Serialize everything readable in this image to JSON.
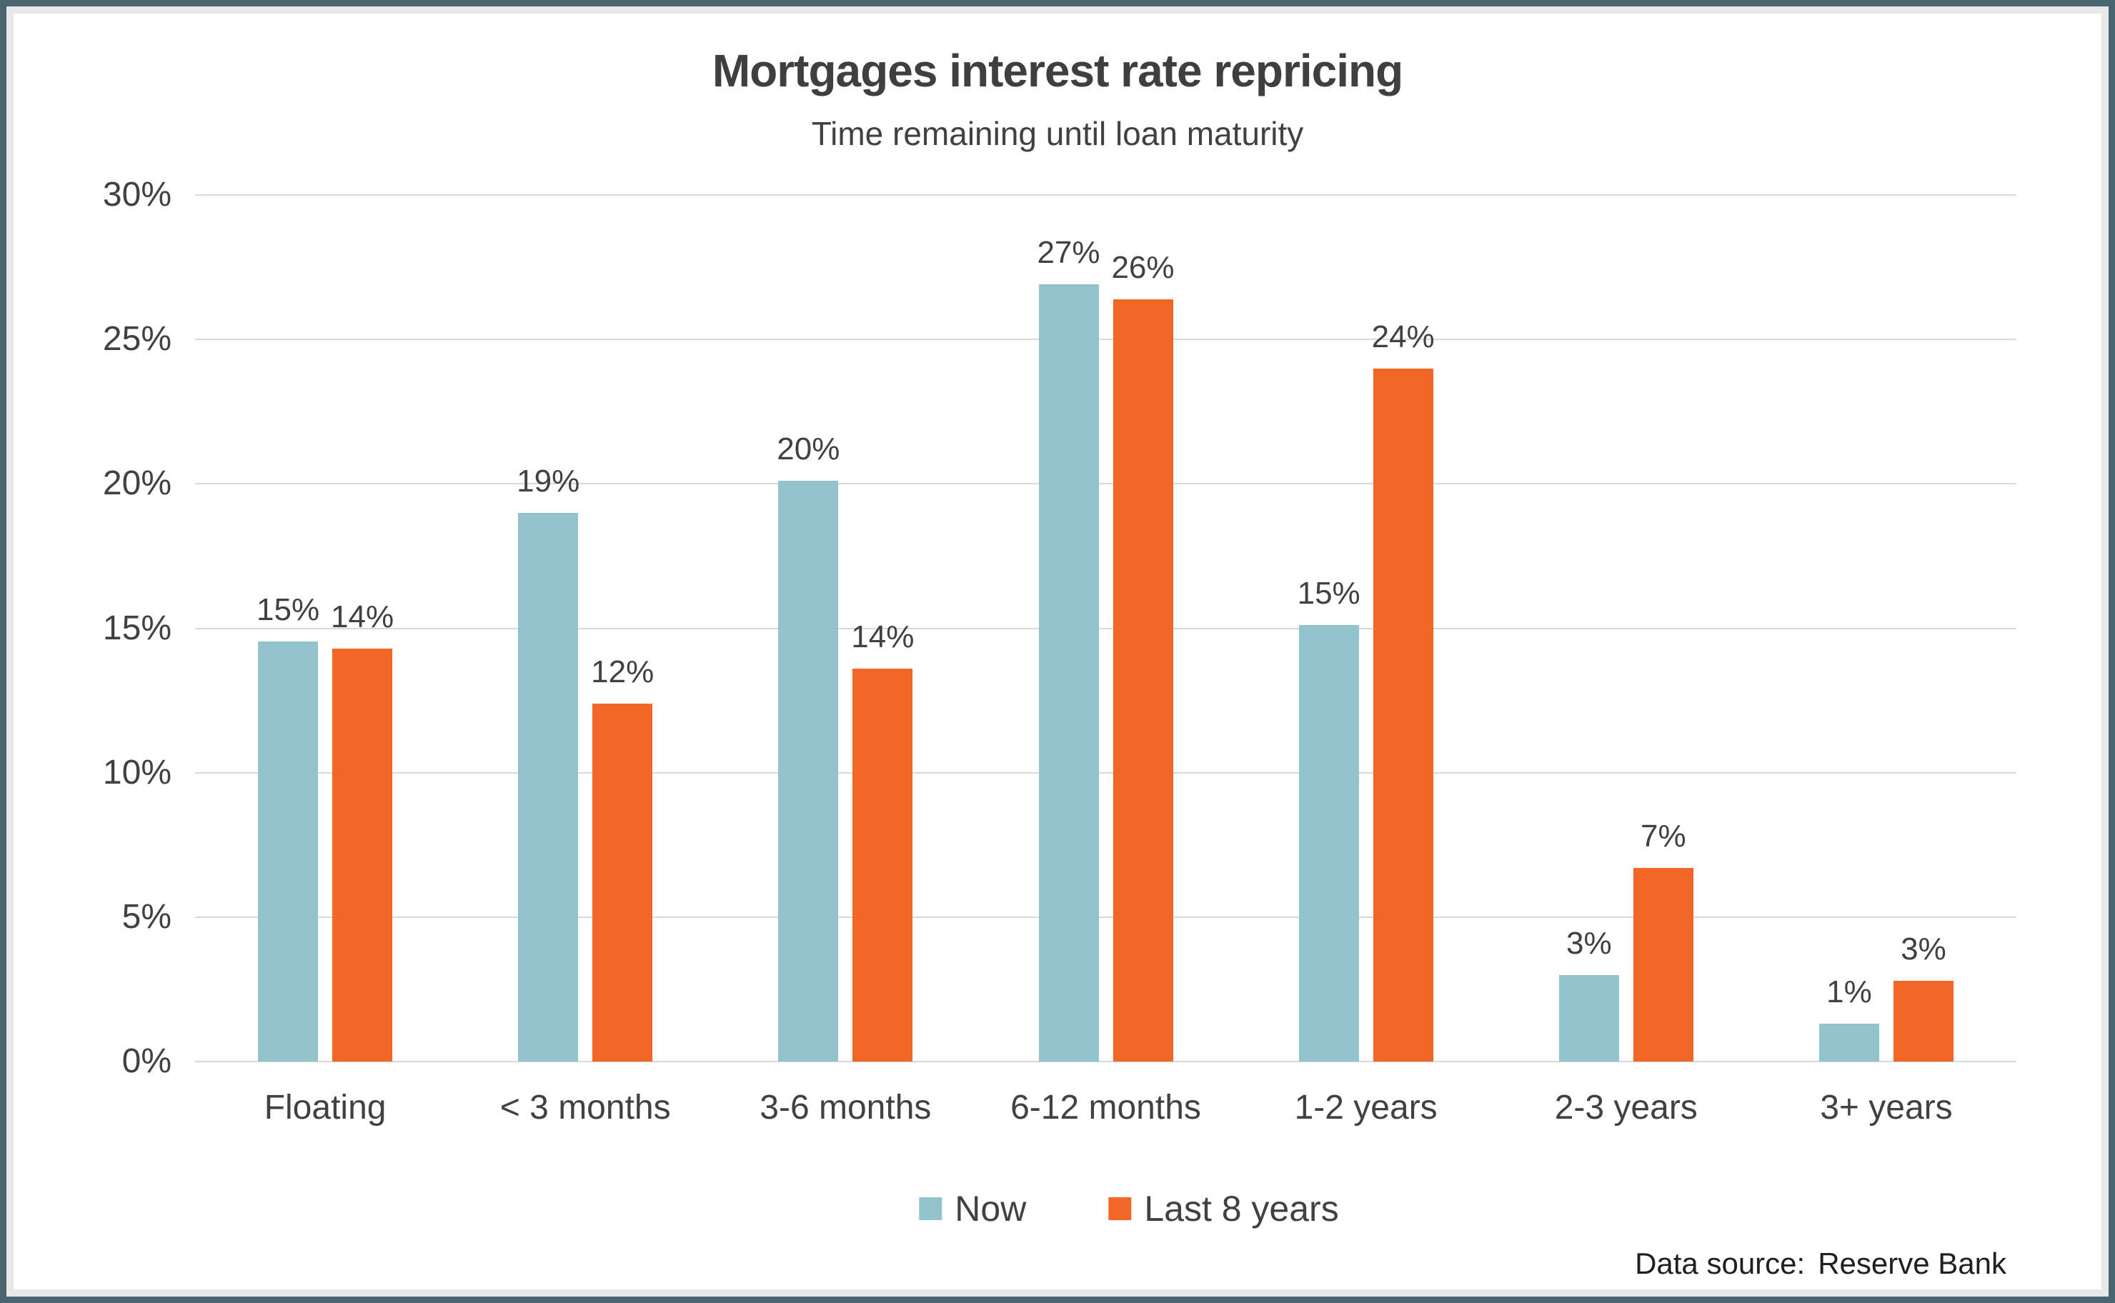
{
  "frame": {
    "border_color": "#4A6570",
    "inner_ring_color": "#E8E8E8",
    "background": "#FFFFFF"
  },
  "chart_data": {
    "type": "bar",
    "title": "Mortgages interest rate repricing",
    "subtitle": "Time remaining until loan maturity",
    "categories": [
      "Floating",
      "< 3 months",
      "3-6 months",
      "6-12 months",
      "1-2 years",
      "2-3 years",
      "3+ years"
    ],
    "series": [
      {
        "name": "Now",
        "color": "#93C4CE",
        "values": [
          15,
          19,
          20,
          27,
          15,
          3,
          1
        ],
        "labels": [
          "15%",
          "19%",
          "20%",
          "27%",
          "15%",
          "3%",
          "1%"
        ],
        "drawn_values": [
          14.55,
          19.0,
          20.1,
          26.9,
          15.1,
          3.0,
          1.3
        ]
      },
      {
        "name": "Last 8 years",
        "color": "#F26726",
        "values": [
          14,
          12,
          14,
          26,
          24,
          7,
          3
        ],
        "labels": [
          "14%",
          "12%",
          "14%",
          "26%",
          "24%",
          "7%",
          "3%"
        ],
        "drawn_values": [
          14.3,
          12.4,
          13.6,
          26.4,
          24.0,
          6.7,
          2.8
        ]
      }
    ],
    "y_axis": {
      "min": 0,
      "max": 30,
      "step": 5,
      "tick_labels": [
        "30%",
        "25%",
        "20%",
        "15%",
        "10%",
        "5%",
        "0%"
      ],
      "grid": true
    },
    "legend": {
      "position": "bottom",
      "entries": [
        "Now",
        "Last 8 years"
      ]
    },
    "source": {
      "label": "Data source:",
      "value": "Reserve Bank"
    },
    "text_color": "#414042",
    "gridline_color": "#D9D9D9"
  }
}
